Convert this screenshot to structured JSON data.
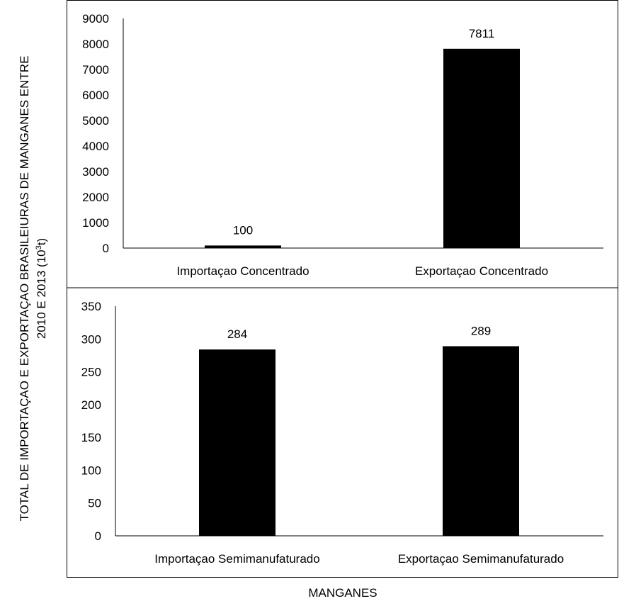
{
  "figure": {
    "ylabel_line1": "TOTAL DE IMPORTAÇAO E EXPORTAÇAO BRASILEIURAS DE MANGANES ENTRE",
    "ylabel_line2_main": "2010 E 2013 (10",
    "ylabel_line2_sup": "3",
    "ylabel_line2_tail": "t)",
    "xlabel": "MANGANES"
  },
  "chart_data": [
    {
      "type": "bar",
      "categories": [
        "Importaçao Concentrado",
        "Exportaçao Concentrado"
      ],
      "values": [
        100,
        7811
      ],
      "data_labels": [
        "100",
        "7811"
      ],
      "ylim": [
        0,
        9000
      ],
      "yticks": [
        0,
        1000,
        2000,
        3000,
        4000,
        5000,
        6000,
        7000,
        8000,
        9000
      ],
      "bar_color": "#000000",
      "grid": false
    },
    {
      "type": "bar",
      "categories": [
        "Importaçao Semimanufaturado",
        "Exportaçao Semimanufaturado"
      ],
      "values": [
        284,
        289
      ],
      "data_labels": [
        "284",
        "289"
      ],
      "ylim": [
        0,
        350
      ],
      "yticks": [
        0,
        50,
        100,
        150,
        200,
        250,
        300,
        350
      ],
      "bar_color": "#000000",
      "grid": false
    }
  ]
}
